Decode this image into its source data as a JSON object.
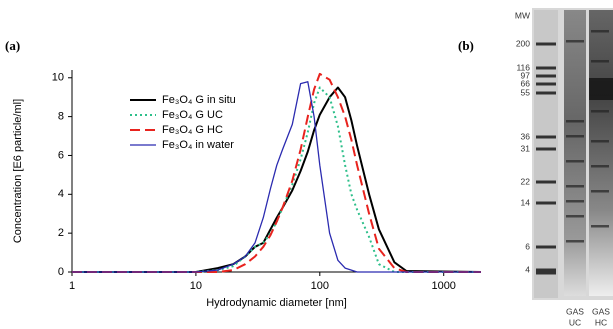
{
  "panel_labels": [
    "(a)",
    "(b)"
  ],
  "chart_data": {
    "type": "line",
    "xlabel": "Hydrodynamic diameter [nm]",
    "ylabel": "Concentration [E6 particle/ml]",
    "x": [
      1,
      10,
      15,
      20,
      25,
      30,
      35,
      40,
      45,
      50,
      60,
      70,
      80,
      90,
      100,
      120,
      140,
      160,
      180,
      200,
      250,
      300,
      400,
      500,
      2000
    ],
    "xscale": "log",
    "xlim": [
      1,
      2000
    ],
    "xticks": [
      1,
      10,
      100,
      1000
    ],
    "ylim": [
      0,
      10.4
    ],
    "yticks": [
      0,
      2,
      4,
      6,
      8,
      10
    ],
    "legend": "upper left",
    "series": [
      {
        "name": "Fe₃O₄ G in situ",
        "color": "#000000",
        "linestyle": "solid",
        "width": 2,
        "values": [
          0,
          0,
          0.2,
          0.4,
          0.8,
          1.3,
          1.5,
          2.2,
          2.8,
          3.3,
          4.2,
          5.2,
          6.2,
          7.3,
          8.1,
          9.0,
          9.5,
          9.0,
          7.8,
          6.5,
          4.0,
          2.2,
          0.5,
          0.05,
          0
        ]
      },
      {
        "name": "Fe₃O₄ G UC",
        "color": "#2dbf8a",
        "linestyle": "dotted",
        "width": 2,
        "values": [
          0,
          0,
          0.1,
          0.3,
          0.8,
          1.3,
          1.5,
          2.0,
          2.6,
          3.3,
          4.5,
          5.8,
          7.2,
          8.7,
          9.5,
          9.0,
          7.5,
          5.5,
          4.0,
          3.2,
          1.8,
          0.4,
          0,
          0,
          0
        ]
      },
      {
        "name": "Fe₃O₄ G HC",
        "color": "#e8231e",
        "linestyle": "dashed",
        "width": 2,
        "values": [
          0,
          0,
          0,
          0.1,
          0.4,
          0.8,
          1.3,
          1.9,
          2.6,
          3.3,
          4.7,
          6.3,
          8.0,
          9.4,
          10.2,
          9.9,
          9.0,
          8.0,
          6.8,
          5.5,
          3.0,
          1.2,
          0.2,
          0,
          0
        ]
      },
      {
        "name": "Fe₃O₄ in water",
        "color": "#2b2bb0",
        "linestyle": "solid",
        "width": 1.3,
        "values": [
          0,
          0,
          0.1,
          0.4,
          0.8,
          1.5,
          2.8,
          4.3,
          5.5,
          6.3,
          7.6,
          9.7,
          9.8,
          8.0,
          5.5,
          2.0,
          0.6,
          0.2,
          0.1,
          0,
          0,
          0,
          0,
          0,
          0
        ]
      }
    ]
  },
  "gel": {
    "markers": [
      "MW",
      "200",
      "116",
      "97",
      "66",
      "55",
      "36",
      "31",
      "22",
      "14",
      "6",
      "4"
    ],
    "lanes": [
      [
        "GAS",
        "UC"
      ],
      [
        "GAS",
        "HC"
      ]
    ]
  }
}
